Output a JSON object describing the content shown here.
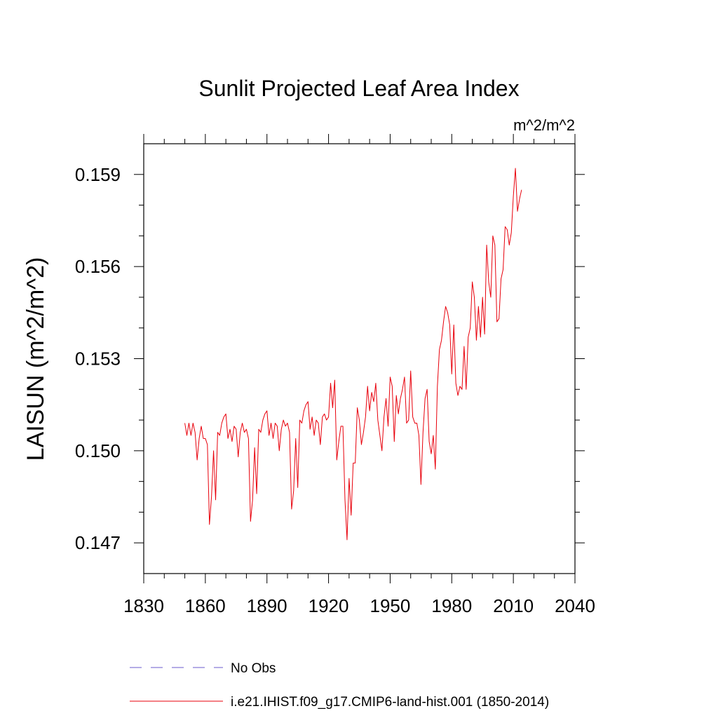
{
  "chart_data": {
    "type": "line",
    "title": "Sunlit Projected Leaf Area Index",
    "units": "m^2/m^2",
    "ylabel": "LAISUN  (m^2/m^2)",
    "xlabel": "",
    "xlim": [
      1830,
      2040
    ],
    "ylim": [
      0.146,
      0.16
    ],
    "x_ticks": [
      1830,
      1860,
      1890,
      1920,
      1950,
      1980,
      2010,
      2040
    ],
    "x_tick_labels": [
      "1830",
      "1860",
      "1890",
      "1920",
      "1950",
      "1980",
      "2010",
      "2040"
    ],
    "y_ticks": [
      0.147,
      0.15,
      0.153,
      0.156,
      0.159
    ],
    "y_tick_labels": [
      "0.147",
      "0.150",
      "0.153",
      "0.156",
      "0.159"
    ],
    "grid": false,
    "legend_position": "bottom",
    "legend": [
      {
        "label": "No Obs",
        "color": "#6a5acd",
        "dash": "dashed"
      },
      {
        "label": "i.e21.IHIST.f09_g17.CMIP6-land-hist.001 (1850-2014)",
        "color": "#e8000b",
        "dash": "solid"
      }
    ],
    "series": [
      {
        "name": "i.e21.IHIST.f09_g17.CMIP6-land-hist.001 (1850-2014)",
        "color": "#e8000b",
        "x_start": 1850,
        "x_step": 1,
        "values": [
          0.1509,
          0.1505,
          0.1509,
          0.1505,
          0.1509,
          0.1506,
          0.1497,
          0.1504,
          0.1508,
          0.1504,
          0.1504,
          0.1502,
          0.1476,
          0.1485,
          0.15,
          0.1484,
          0.1506,
          0.1505,
          0.1509,
          0.1511,
          0.1512,
          0.1504,
          0.1507,
          0.1503,
          0.1508,
          0.1507,
          0.1498,
          0.1506,
          0.1509,
          0.1506,
          0.1507,
          0.1504,
          0.1477,
          0.1484,
          0.1501,
          0.1486,
          0.1507,
          0.1506,
          0.151,
          0.1512,
          0.1513,
          0.1505,
          0.1509,
          0.1504,
          0.1509,
          0.1508,
          0.15,
          0.1507,
          0.151,
          0.1508,
          0.1509,
          0.1506,
          0.1481,
          0.1487,
          0.1504,
          0.1488,
          0.151,
          0.1509,
          0.1513,
          0.1515,
          0.1516,
          0.1507,
          0.1511,
          0.1505,
          0.151,
          0.1509,
          0.1502,
          0.1511,
          0.1512,
          0.151,
          0.1511,
          0.1522,
          0.1514,
          0.1523,
          0.1497,
          0.1503,
          0.1508,
          0.1508,
          0.1484,
          0.1471,
          0.1491,
          0.1479,
          0.1496,
          0.1496,
          0.1514,
          0.151,
          0.1502,
          0.1506,
          0.1511,
          0.1521,
          0.1513,
          0.1519,
          0.1516,
          0.1522,
          0.151,
          0.1505,
          0.15,
          0.1511,
          0.1517,
          0.1508,
          0.1524,
          0.1521,
          0.1503,
          0.1518,
          0.1512,
          0.1517,
          0.152,
          0.1524,
          0.1509,
          0.151,
          0.1526,
          0.1511,
          0.1509,
          0.1509,
          0.1505,
          0.1489,
          0.1506,
          0.1517,
          0.152,
          0.1503,
          0.1499,
          0.1505,
          0.1494,
          0.1521,
          0.1533,
          0.1536,
          0.1542,
          0.1547,
          0.1545,
          0.1541,
          0.1525,
          0.1541,
          0.1522,
          0.1518,
          0.1521,
          0.152,
          0.1534,
          0.152,
          0.1537,
          0.154,
          0.1555,
          0.155,
          0.1536,
          0.1547,
          0.1537,
          0.155,
          0.1538,
          0.1567,
          0.1555,
          0.155,
          0.157,
          0.1567,
          0.1542,
          0.1543,
          0.1556,
          0.1559,
          0.1573,
          0.1572,
          0.1567,
          0.1571,
          0.1583,
          0.1592,
          0.1578,
          0.1582,
          0.1585
        ]
      }
    ]
  }
}
